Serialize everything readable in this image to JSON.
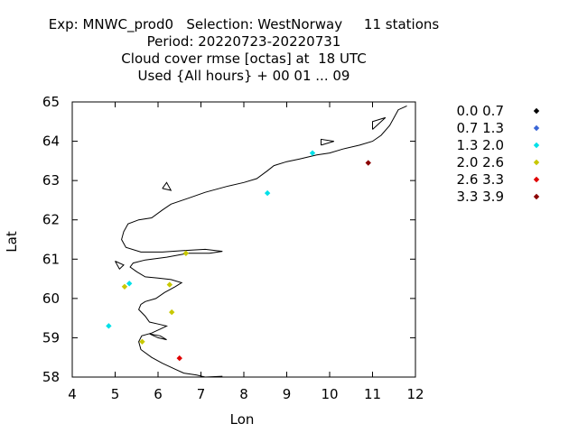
{
  "chart_data": {
    "type": "scatter",
    "title_lines": [
      "Exp: MNWC_prod0   Selection: WestNorway     11 stations",
      "Period: 20220723-20220731",
      "Cloud cover rmse [octas] at  18 UTC",
      "Used {All hours} + 00 01 ... 09"
    ],
    "xlabel": "Lon",
    "ylabel": "Lat",
    "xlim": [
      4,
      12
    ],
    "ylim": [
      58,
      65
    ],
    "xticks": [
      4,
      5,
      6,
      7,
      8,
      9,
      10,
      11,
      12
    ],
    "yticks": [
      58,
      59,
      60,
      61,
      62,
      63,
      64,
      65
    ],
    "grid": false,
    "legend_position": "right-outside",
    "legend": [
      {
        "label": "0.0 0.7",
        "color": "#000000"
      },
      {
        "label": "0.7 1.3",
        "color": "#3a66d6"
      },
      {
        "label": "1.3 2.0",
        "color": "#00e0e8"
      },
      {
        "label": "2.0 2.6",
        "color": "#c8c800"
      },
      {
        "label": "2.6 3.3",
        "color": "#e00000"
      },
      {
        "label": "3.3 3.9",
        "color": "#8b0000"
      }
    ],
    "points": [
      {
        "lon": 9.6,
        "lat": 63.7,
        "class": 2
      },
      {
        "lon": 10.9,
        "lat": 63.45,
        "class": 5
      },
      {
        "lon": 8.55,
        "lat": 62.68,
        "class": 2
      },
      {
        "lon": 6.65,
        "lat": 61.15,
        "class": 3
      },
      {
        "lon": 5.33,
        "lat": 60.38,
        "class": 2
      },
      {
        "lon": 5.22,
        "lat": 60.3,
        "class": 3
      },
      {
        "lon": 6.27,
        "lat": 60.35,
        "class": 3
      },
      {
        "lon": 6.32,
        "lat": 59.65,
        "class": 3
      },
      {
        "lon": 4.85,
        "lat": 59.3,
        "class": 2
      },
      {
        "lon": 5.63,
        "lat": 58.9,
        "class": 3
      },
      {
        "lon": 6.5,
        "lat": 58.48,
        "class": 4
      }
    ],
    "coastlines": [
      [
        [
          7.5,
          58.02
        ],
        [
          7.1,
          58.0
        ],
        [
          6.9,
          58.05
        ],
        [
          6.6,
          58.1
        ],
        [
          6.4,
          58.2
        ],
        [
          6.1,
          58.35
        ],
        [
          5.85,
          58.5
        ],
        [
          5.6,
          58.7
        ],
        [
          5.55,
          58.9
        ],
        [
          5.62,
          59.05
        ],
        [
          5.85,
          59.12
        ],
        [
          6.05,
          59.22
        ],
        [
          6.2,
          59.3
        ],
        [
          6.0,
          59.35
        ],
        [
          5.8,
          59.4
        ],
        [
          5.7,
          59.55
        ],
        [
          5.55,
          59.72
        ],
        [
          5.6,
          59.85
        ],
        [
          5.7,
          59.92
        ],
        [
          5.95,
          60.0
        ],
        [
          6.15,
          60.15
        ],
        [
          6.4,
          60.3
        ],
        [
          6.55,
          60.4
        ],
        [
          6.3,
          60.48
        ],
        [
          6.0,
          60.52
        ],
        [
          5.7,
          60.55
        ],
        [
          5.5,
          60.68
        ],
        [
          5.35,
          60.8
        ],
        [
          5.42,
          60.9
        ],
        [
          5.7,
          60.98
        ],
        [
          6.2,
          61.05
        ],
        [
          6.7,
          61.15
        ],
        [
          7.2,
          61.15
        ],
        [
          7.5,
          61.2
        ],
        [
          7.1,
          61.25
        ],
        [
          6.6,
          61.22
        ],
        [
          6.1,
          61.18
        ],
        [
          5.6,
          61.18
        ],
        [
          5.25,
          61.3
        ],
        [
          5.15,
          61.5
        ],
        [
          5.2,
          61.7
        ],
        [
          5.3,
          61.9
        ],
        [
          5.55,
          62.0
        ],
        [
          5.85,
          62.05
        ],
        [
          6.1,
          62.25
        ],
        [
          6.3,
          62.4
        ],
        [
          6.7,
          62.55
        ],
        [
          7.1,
          62.7
        ],
        [
          7.6,
          62.85
        ],
        [
          8.0,
          62.95
        ],
        [
          8.3,
          63.05
        ],
        [
          8.55,
          63.25
        ],
        [
          8.7,
          63.38
        ],
        [
          9.0,
          63.48
        ],
        [
          9.3,
          63.55
        ],
        [
          9.7,
          63.65
        ],
        [
          10.0,
          63.7
        ],
        [
          10.3,
          63.8
        ],
        [
          10.7,
          63.9
        ],
        [
          11.0,
          64.0
        ],
        [
          11.2,
          64.15
        ],
        [
          11.4,
          64.4
        ],
        [
          11.5,
          64.6
        ],
        [
          11.6,
          64.8
        ],
        [
          11.8,
          64.9
        ]
      ],
      [
        [
          5.8,
          59.1
        ],
        [
          6.0,
          59.0
        ],
        [
          6.2,
          58.95
        ],
        [
          6.05,
          59.05
        ],
        [
          5.8,
          59.1
        ]
      ],
      [
        [
          6.1,
          62.8
        ],
        [
          6.2,
          62.95
        ],
        [
          6.3,
          62.75
        ],
        [
          6.1,
          62.8
        ]
      ],
      [
        [
          5.0,
          60.95
        ],
        [
          5.2,
          60.85
        ],
        [
          5.1,
          60.75
        ],
        [
          5.0,
          60.95
        ]
      ],
      [
        [
          9.8,
          63.9
        ],
        [
          10.1,
          64.0
        ],
        [
          9.8,
          64.05
        ],
        [
          9.8,
          63.9
        ]
      ],
      [
        [
          11.0,
          64.3
        ],
        [
          11.3,
          64.6
        ],
        [
          11.0,
          64.5
        ],
        [
          11.0,
          64.3
        ]
      ]
    ]
  }
}
